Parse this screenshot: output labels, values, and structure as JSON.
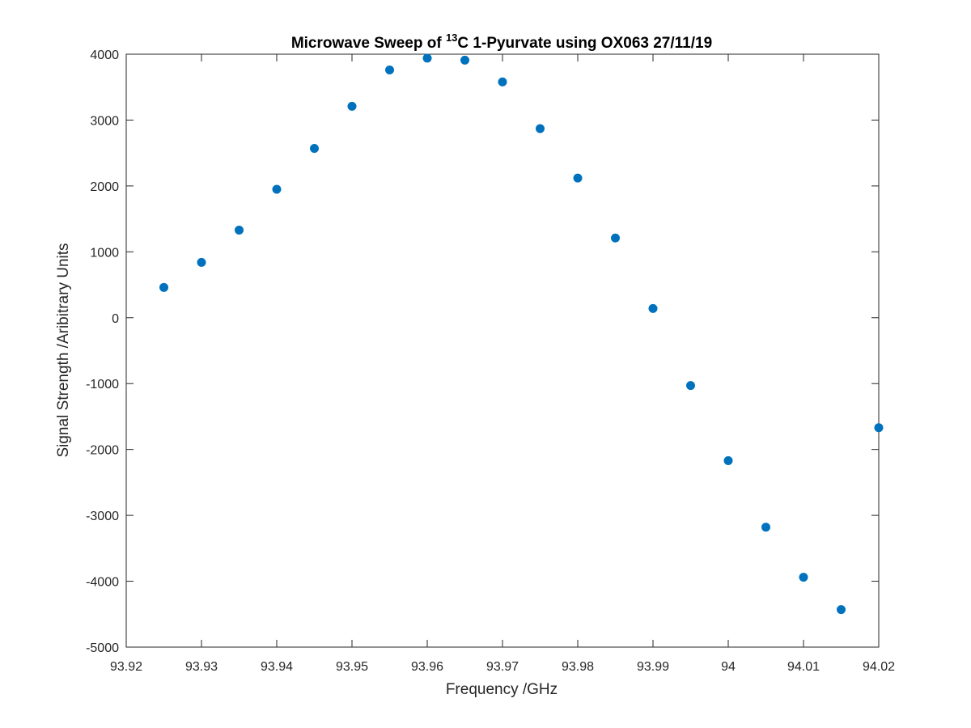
{
  "chart_data": {
    "type": "scatter",
    "title": {
      "prefix": "Microwave Sweep of ",
      "superscript": "13",
      "suffix": "C 1-Pyurvate using OX063 27/11/19"
    },
    "xlabel": "Frequency /GHz",
    "ylabel": "Signal Strength /Aribitrary Units",
    "xlim": [
      93.92,
      94.02
    ],
    "ylim": [
      -5000,
      4000
    ],
    "xticks": [
      "93.92",
      "93.93",
      "93.94",
      "93.95",
      "93.96",
      "93.97",
      "93.98",
      "93.99",
      "94",
      "94.01",
      "94.02"
    ],
    "yticks": [
      "-5000",
      "-4000",
      "-3000",
      "-2000",
      "-1000",
      "0",
      "1000",
      "2000",
      "3000",
      "4000"
    ],
    "grid": false,
    "marker_color": "#0072BD",
    "axis_color": "#262626",
    "series": [
      {
        "x": [
          93.925,
          93.93,
          93.935,
          93.94,
          93.945,
          93.95,
          93.955,
          93.96,
          93.965,
          93.97,
          93.975,
          93.98,
          93.985,
          93.99,
          93.995,
          94.0,
          94.005,
          94.01,
          94.015,
          94.02
        ],
        "y": [
          460,
          840,
          1330,
          1950,
          2570,
          3210,
          3760,
          3940,
          3910,
          3580,
          2870,
          2120,
          1210,
          140,
          -1030,
          -2170,
          -3180,
          -3940,
          -4430,
          -1670
        ]
      }
    ]
  }
}
